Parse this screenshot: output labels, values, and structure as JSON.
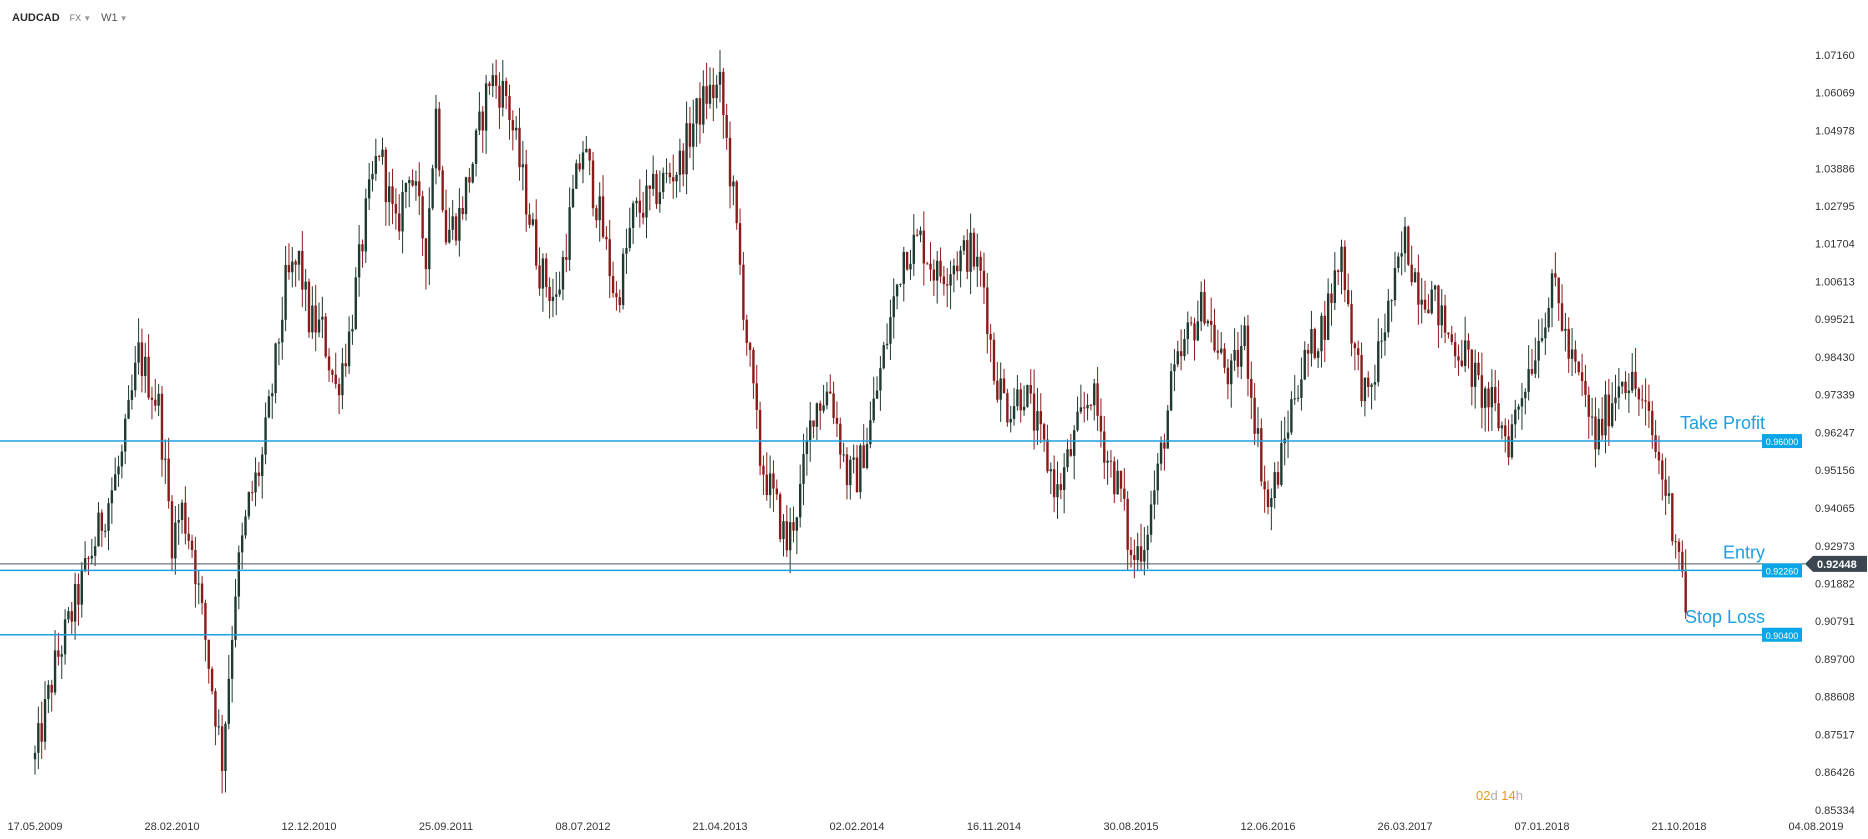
{
  "header": {
    "symbol": "AUDCAD",
    "market": "FX",
    "timeframe": "W1"
  },
  "countdown": {
    "days": "02",
    "days_unit": "d",
    "hours": "14",
    "hours_unit": "h"
  },
  "colors": {
    "level_line": "#1ea0e0",
    "level_badge": "#0aa7e8",
    "price_line": "#4a5560",
    "price_badge": "#3c4650",
    "bull_candle": "#1f3a2e",
    "bear_candle": "#8b1a1a",
    "countdown": "#e69a1e"
  },
  "chart_data": {
    "type": "candlestick",
    "y_axis": {
      "range": [
        0.85334,
        1.0716
      ],
      "ticks": [
        "1.07160",
        "1.06069",
        "1.04978",
        "1.03886",
        "1.02795",
        "1.01704",
        "1.00613",
        "0.99521",
        "0.98430",
        "0.97339",
        "0.96247",
        "0.95156",
        "0.94065",
        "0.92973",
        "0.91882",
        "0.90791",
        "0.89700",
        "0.88608",
        "0.87517",
        "0.86426",
        "0.85334"
      ]
    },
    "x_axis": {
      "ticks": [
        "17.05.2009",
        "28.02.2010",
        "12.12.2010",
        "25.09.2011",
        "08.07.2012",
        "21.04.2013",
        "02.02.2014",
        "16.11.2014",
        "30.08.2015",
        "12.06.2016",
        "26.03.2017",
        "07.01.2018",
        "21.10.2018",
        "04.08.2019"
      ]
    },
    "current_price": {
      "value": 0.92448,
      "label": "0.92448"
    },
    "levels": [
      {
        "name": "Take Profit",
        "value": 0.96,
        "label": "0.96000"
      },
      {
        "name": "Entry",
        "value": 0.9226,
        "label": "0.92260"
      },
      {
        "name": "Stop Loss",
        "value": 0.904,
        "label": "0.90400"
      }
    ],
    "series_anchors": [
      [
        "2009-05-17",
        0.868
      ],
      [
        "2009-06-28",
        0.895
      ],
      [
        "2009-09-06",
        0.925
      ],
      [
        "2009-11-15",
        0.955
      ],
      [
        "2009-12-20",
        0.985
      ],
      [
        "2010-01-31",
        0.97
      ],
      [
        "2010-02-28",
        0.932
      ],
      [
        "2010-03-21",
        0.94
      ],
      [
        "2010-04-11",
        0.93
      ],
      [
        "2010-05-16",
        0.896
      ],
      [
        "2010-06-13",
        0.868
      ],
      [
        "2010-07-11",
        0.918
      ],
      [
        "2010-08-08",
        0.942
      ],
      [
        "2010-09-05",
        0.955
      ],
      [
        "2010-09-26",
        0.975
      ],
      [
        "2010-10-24",
        1.005
      ],
      [
        "2010-11-21",
        1.012
      ],
      [
        "2010-12-12",
        0.995
      ],
      [
        "2011-01-09",
        0.992
      ],
      [
        "2011-02-06",
        0.975
      ],
      [
        "2011-03-06",
        0.99
      ],
      [
        "2011-04-10",
        1.025
      ],
      [
        "2011-05-08",
        1.045
      ],
      [
        "2011-06-12",
        1.02
      ],
      [
        "2011-07-10",
        1.04
      ],
      [
        "2011-08-14",
        1.015
      ],
      [
        "2011-09-04",
        1.055
      ],
      [
        "2011-09-25",
        1.02
      ],
      [
        "2011-10-23",
        1.025
      ],
      [
        "2011-11-27",
        1.045
      ],
      [
        "2011-12-25",
        1.065
      ],
      [
        "2012-01-29",
        1.06
      ],
      [
        "2012-03-04",
        1.035
      ],
      [
        "2012-04-08",
        1.01
      ],
      [
        "2012-05-13",
        1.0
      ],
      [
        "2012-06-17",
        1.03
      ],
      [
        "2012-07-08",
        1.045
      ],
      [
        "2012-08-12",
        1.025
      ],
      [
        "2012-09-16",
        1.0
      ],
      [
        "2012-10-21",
        1.025
      ],
      [
        "2012-11-25",
        1.03
      ],
      [
        "2012-12-23",
        1.035
      ],
      [
        "2013-01-27",
        1.04
      ],
      [
        "2013-02-24",
        1.052
      ],
      [
        "2013-03-24",
        1.06
      ],
      [
        "2013-04-21",
        1.062
      ],
      [
        "2013-05-19",
        1.03
      ],
      [
        "2013-06-16",
        0.99
      ],
      [
        "2013-07-14",
        0.955
      ],
      [
        "2013-08-18",
        0.94
      ],
      [
        "2013-09-08",
        0.93
      ],
      [
        "2013-10-06",
        0.945
      ],
      [
        "2013-11-03",
        0.97
      ],
      [
        "2013-12-08",
        0.975
      ],
      [
        "2014-01-12",
        0.95
      ],
      [
        "2014-02-02",
        0.95
      ],
      [
        "2014-03-02",
        0.965
      ],
      [
        "2014-04-06",
        0.99
      ],
      [
        "2014-05-11",
        1.015
      ],
      [
        "2014-06-15",
        1.018
      ],
      [
        "2014-07-20",
        1.008
      ],
      [
        "2014-08-24",
        1.012
      ],
      [
        "2014-09-28",
        1.015
      ],
      [
        "2014-10-26",
        1.005
      ],
      [
        "2014-11-16",
        0.98
      ],
      [
        "2014-12-14",
        0.97
      ],
      [
        "2015-01-18",
        0.975
      ],
      [
        "2015-02-22",
        0.96
      ],
      [
        "2015-03-29",
        0.945
      ],
      [
        "2015-05-03",
        0.96
      ],
      [
        "2015-06-07",
        0.975
      ],
      [
        "2015-07-12",
        0.955
      ],
      [
        "2015-08-09",
        0.945
      ],
      [
        "2015-08-30",
        0.925
      ],
      [
        "2015-09-27",
        0.932
      ],
      [
        "2015-10-25",
        0.95
      ],
      [
        "2015-11-22",
        0.975
      ],
      [
        "2015-12-27",
        0.99
      ],
      [
        "2016-01-31",
        1.0
      ],
      [
        "2016-02-28",
        0.985
      ],
      [
        "2016-03-27",
        0.978
      ],
      [
        "2016-04-24",
        0.99
      ],
      [
        "2016-05-22",
        0.96
      ],
      [
        "2016-06-12",
        0.94
      ],
      [
        "2016-07-10",
        0.955
      ],
      [
        "2016-08-07",
        0.975
      ],
      [
        "2016-09-04",
        0.985
      ],
      [
        "2016-10-09",
        0.995
      ],
      [
        "2016-11-13",
        1.015
      ],
      [
        "2016-12-11",
        0.985
      ],
      [
        "2017-01-08",
        0.97
      ],
      [
        "2017-02-05",
        0.99
      ],
      [
        "2017-03-05",
        1.005
      ],
      [
        "2017-03-26",
        1.018
      ],
      [
        "2017-04-23",
        1.005
      ],
      [
        "2017-05-21",
        1.002
      ],
      [
        "2017-06-25",
        0.99
      ],
      [
        "2017-07-30",
        0.985
      ],
      [
        "2017-08-27",
        0.975
      ],
      [
        "2017-09-24",
        0.97
      ],
      [
        "2017-10-29",
        0.96
      ],
      [
        "2017-11-26",
        0.975
      ],
      [
        "2017-12-31",
        0.99
      ],
      [
        "2018-01-07",
        0.995
      ],
      [
        "2018-02-04",
        1.005
      ],
      [
        "2018-03-04",
        0.985
      ],
      [
        "2018-04-01",
        0.975
      ],
      [
        "2018-04-29",
        0.96
      ],
      [
        "2018-05-27",
        0.97
      ],
      [
        "2018-06-24",
        0.98
      ],
      [
        "2018-07-22",
        0.975
      ],
      [
        "2018-08-19",
        0.965
      ],
      [
        "2018-09-16",
        0.95
      ],
      [
        "2018-10-07",
        0.937
      ],
      [
        "2018-10-21",
        0.93
      ],
      [
        "2018-11-04",
        0.912
      ]
    ]
  }
}
